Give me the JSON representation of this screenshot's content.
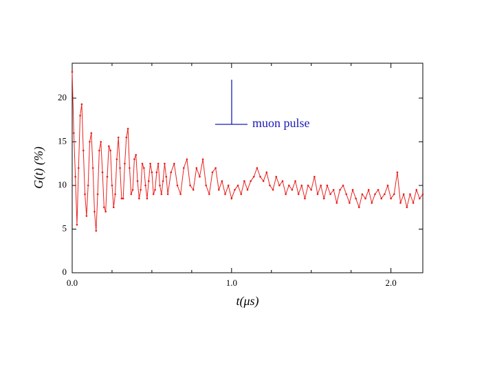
{
  "chart_data": {
    "type": "line",
    "x_label": "t(μs)",
    "y_label": "G(t) (%)",
    "annotation": "muon pulse",
    "x": [
      0.0,
      0.01,
      0.02,
      0.03,
      0.04,
      0.05,
      0.06,
      0.07,
      0.08,
      0.09,
      0.1,
      0.11,
      0.12,
      0.13,
      0.14,
      0.15,
      0.16,
      0.17,
      0.18,
      0.19,
      0.2,
      0.21,
      0.22,
      0.23,
      0.24,
      0.25,
      0.26,
      0.27,
      0.28,
      0.29,
      0.3,
      0.31,
      0.32,
      0.33,
      0.34,
      0.35,
      0.36,
      0.37,
      0.38,
      0.39,
      0.4,
      0.41,
      0.42,
      0.43,
      0.44,
      0.45,
      0.46,
      0.47,
      0.48,
      0.49,
      0.5,
      0.51,
      0.52,
      0.53,
      0.54,
      0.55,
      0.56,
      0.57,
      0.58,
      0.59,
      0.6,
      0.62,
      0.64,
      0.66,
      0.68,
      0.7,
      0.72,
      0.74,
      0.76,
      0.78,
      0.8,
      0.82,
      0.84,
      0.86,
      0.88,
      0.9,
      0.92,
      0.94,
      0.96,
      0.98,
      1.0,
      1.02,
      1.04,
      1.06,
      1.08,
      1.1,
      1.12,
      1.14,
      1.16,
      1.18,
      1.2,
      1.22,
      1.24,
      1.26,
      1.28,
      1.3,
      1.32,
      1.34,
      1.36,
      1.38,
      1.4,
      1.42,
      1.44,
      1.46,
      1.48,
      1.5,
      1.52,
      1.54,
      1.56,
      1.58,
      1.6,
      1.62,
      1.64,
      1.66,
      1.68,
      1.7,
      1.72,
      1.74,
      1.76,
      1.78,
      1.8,
      1.82,
      1.84,
      1.86,
      1.88,
      1.9,
      1.92,
      1.94,
      1.96,
      1.98,
      2.0,
      2.02,
      2.04,
      2.06,
      2.08,
      2.1,
      2.12,
      2.14,
      2.16,
      2.18,
      2.2
    ],
    "series": [
      {
        "name": "G(t)",
        "color": "#e8201c",
        "values": [
          23,
          16,
          11,
          5.5,
          12,
          18,
          19.3,
          14,
          9,
          6.5,
          10,
          15,
          16,
          12,
          7,
          4.8,
          9,
          14,
          15,
          11.5,
          7.5,
          7,
          11,
          14.5,
          14,
          10,
          7.5,
          9,
          13,
          15.5,
          12,
          8.5,
          8.5,
          12.5,
          15.5,
          16.5,
          12,
          9,
          9.5,
          13,
          13.5,
          10.5,
          8.5,
          9.5,
          12.5,
          12,
          10,
          8.5,
          10.5,
          12.5,
          11.5,
          9,
          9.5,
          11.5,
          12.5,
          10,
          9,
          10.5,
          12.5,
          11,
          9,
          11.5,
          12.5,
          10,
          9,
          12,
          13,
          10,
          9.5,
          12,
          11,
          13,
          10,
          9,
          11.5,
          12,
          9.5,
          10.5,
          9,
          10,
          8.5,
          9.5,
          10,
          9,
          10.5,
          9.5,
          10.5,
          11,
          12,
          11,
          10.5,
          11.5,
          10,
          9.5,
          11,
          10,
          10.5,
          9,
          10,
          9.5,
          10.5,
          9,
          10,
          8.5,
          10,
          9.5,
          11,
          9,
          10,
          8.5,
          10,
          9,
          9.5,
          8,
          9.5,
          10,
          9,
          8,
          9.5,
          8.5,
          7.5,
          9,
          8.5,
          9.5,
          8,
          9,
          9.5,
          8.5,
          9,
          10,
          8.5,
          9,
          11.5,
          8,
          9,
          7.5,
          9,
          8,
          9.5,
          8.5,
          9
        ]
      }
    ],
    "xlim": [
      0,
      2.2
    ],
    "ylim": [
      0,
      24
    ],
    "xticks": [
      {
        "value": 0,
        "label": "0.0"
      },
      {
        "value": 1,
        "label": "1.0"
      },
      {
        "value": 2,
        "label": "2.0"
      }
    ],
    "xminorticks": [
      0.25,
      0.5,
      0.75,
      1.25,
      1.5,
      1.75
    ],
    "yticks": [
      0,
      5,
      10,
      15,
      20
    ]
  }
}
